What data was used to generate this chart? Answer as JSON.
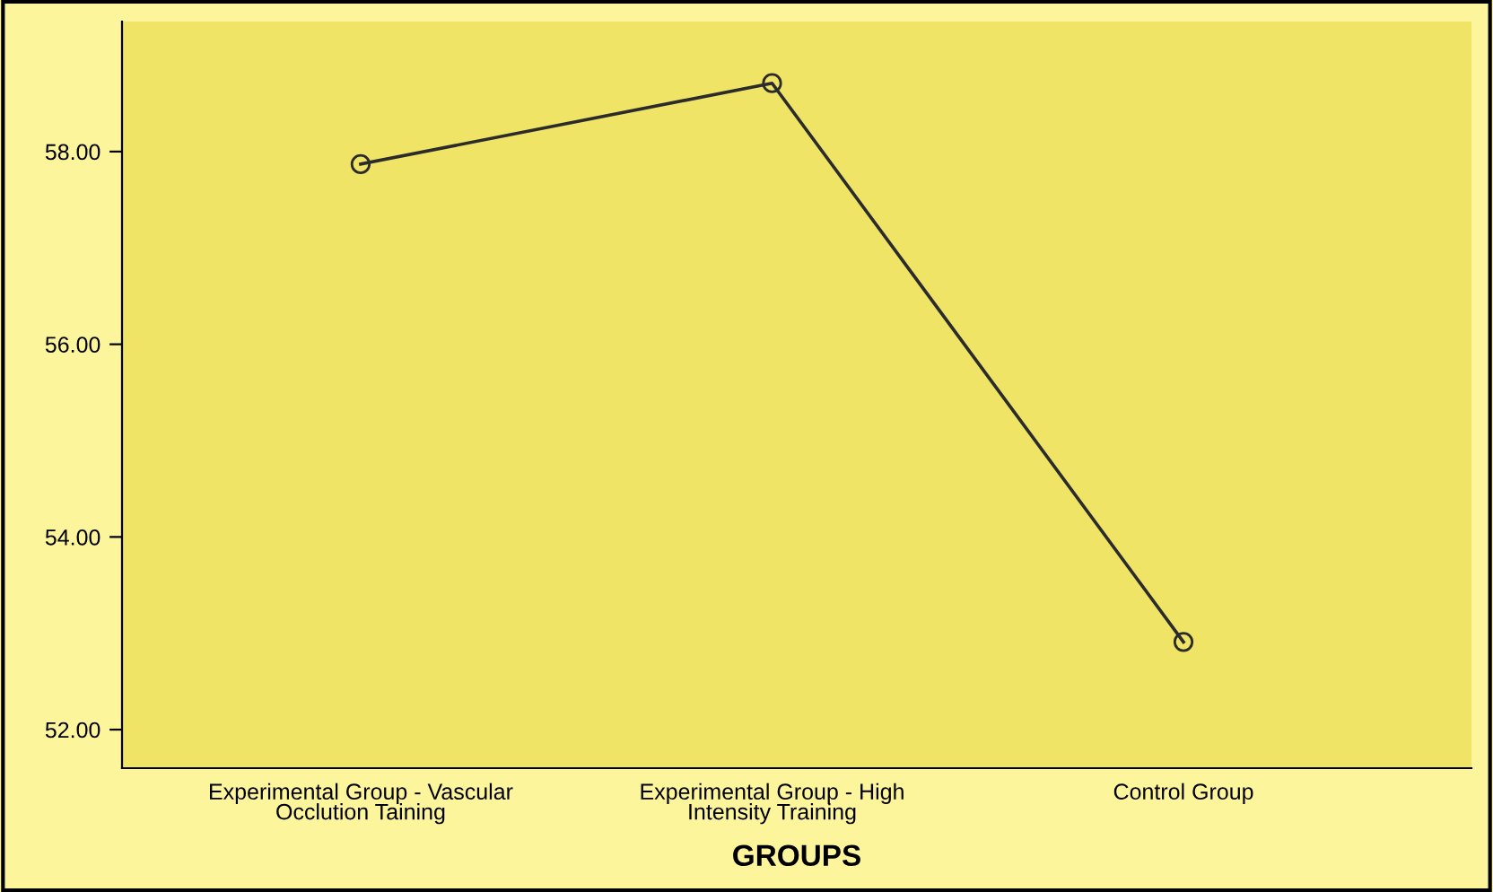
{
  "chart_data": {
    "type": "line",
    "xlabel": "GROUPS",
    "categories": [
      "Experimental Group - Vascular\nOcclution Taining",
      "Experimental Group - High\nIntensity Training",
      "Control Group"
    ],
    "values": [
      57.87,
      58.71,
      52.91
    ],
    "color": "#2b2b2b",
    "marker": "circle",
    "line_style": "solid",
    "grid": false,
    "legend": false,
    "ylim": [
      51.6,
      59.35
    ],
    "yticks": [
      {
        "value": 52,
        "label": "52.00"
      },
      {
        "value": 54,
        "label": "54.00"
      },
      {
        "value": 56,
        "label": "56.00"
      },
      {
        "value": 58,
        "label": "58.00"
      }
    ]
  }
}
